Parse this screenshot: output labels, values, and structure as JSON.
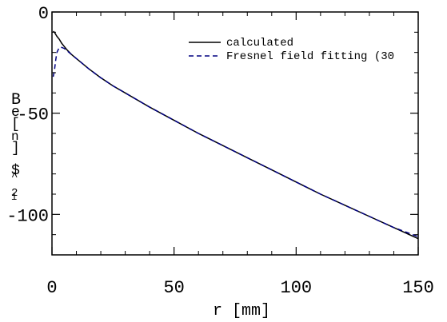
{
  "chart_data": {
    "type": "line",
    "title": "",
    "xlabel": "r [mm]",
    "ylabel_chars": [
      "B",
      "e",
      "[",
      "n",
      "]",
      "$",
      "^",
      "2",
      "1"
    ],
    "xlim": [
      0,
      150
    ],
    "ylim": [
      -120,
      0
    ],
    "x_ticks": [
      0,
      50,
      100,
      150
    ],
    "y_ticks": [
      0,
      -50,
      -100
    ],
    "x_tick_labels": [
      "0",
      "50",
      "100",
      "150"
    ],
    "y_tick_labels": [
      "0",
      "-50",
      "-100"
    ],
    "grid": false,
    "legend_position": "top-right",
    "series": [
      {
        "name": "calculated",
        "style": "solid",
        "color": "#000000",
        "points": [
          [
            0.5,
            -9.5
          ],
          [
            1,
            -10
          ],
          [
            1.5,
            -11
          ],
          [
            2,
            -12
          ],
          [
            3,
            -13.5
          ],
          [
            4,
            -15.5
          ],
          [
            5,
            -17
          ],
          [
            6,
            -18.5
          ],
          [
            8,
            -21
          ],
          [
            10,
            -23
          ],
          [
            12,
            -25
          ],
          [
            15,
            -28
          ],
          [
            20,
            -32.5
          ],
          [
            25,
            -36.5
          ],
          [
            30,
            -40
          ],
          [
            40,
            -47
          ],
          [
            50,
            -53.5
          ],
          [
            60,
            -60
          ],
          [
            70,
            -66
          ],
          [
            80,
            -72
          ],
          [
            90,
            -78
          ],
          [
            100,
            -84
          ],
          [
            110,
            -90
          ],
          [
            120,
            -95.5
          ],
          [
            130,
            -101
          ],
          [
            140,
            -106.5
          ],
          [
            150,
            -112
          ]
        ]
      },
      {
        "name": "Fresnel field fitting (30",
        "style": "dashed",
        "color": "#000080",
        "points": [
          [
            0.5,
            -32
          ],
          [
            1,
            -29
          ],
          [
            1.5,
            -24
          ],
          [
            2,
            -20
          ],
          [
            3,
            -17.5
          ],
          [
            4,
            -17.5
          ],
          [
            5,
            -18
          ],
          [
            6,
            -19
          ],
          [
            8,
            -21
          ],
          [
            10,
            -23
          ],
          [
            12,
            -25
          ],
          [
            15,
            -28
          ],
          [
            20,
            -32.5
          ],
          [
            25,
            -36.5
          ],
          [
            30,
            -40
          ],
          [
            40,
            -47
          ],
          [
            50,
            -53.5
          ],
          [
            60,
            -60
          ],
          [
            70,
            -66
          ],
          [
            80,
            -72
          ],
          [
            90,
            -78
          ],
          [
            100,
            -84
          ],
          [
            110,
            -90
          ],
          [
            120,
            -95.5
          ],
          [
            130,
            -101
          ],
          [
            140,
            -106.5
          ],
          [
            150,
            -111
          ]
        ]
      }
    ]
  }
}
